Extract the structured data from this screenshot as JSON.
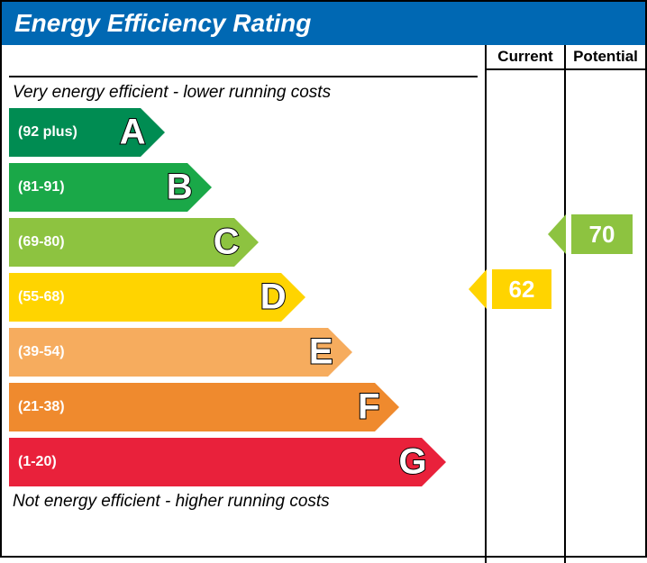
{
  "title": "Energy Efficiency Rating",
  "header_bg": "#0068b3",
  "header_color": "#ffffff",
  "columns": {
    "current": "Current",
    "potential": "Potential"
  },
  "caption_top": "Very energy efficient - lower running costs",
  "caption_bottom": "Not energy efficient - higher running costs",
  "band_height": 54,
  "band_gap": 7,
  "bands": [
    {
      "letter": "A",
      "range": "(92 plus)",
      "color": "#008c52",
      "width_pct": 28
    },
    {
      "letter": "B",
      "range": "(81-91)",
      "color": "#1aa848",
      "width_pct": 38
    },
    {
      "letter": "C",
      "range": "(69-80)",
      "color": "#8dc340",
      "width_pct": 48
    },
    {
      "letter": "D",
      "range": "(55-68)",
      "color": "#ffd400",
      "width_pct": 58
    },
    {
      "letter": "E",
      "range": "(39-54)",
      "color": "#f6ac5e",
      "width_pct": 68
    },
    {
      "letter": "F",
      "range": "(21-38)",
      "color": "#ef8a2e",
      "width_pct": 78
    },
    {
      "letter": "G",
      "range": "(1-20)",
      "color": "#e9213b",
      "width_pct": 88
    }
  ],
  "markers": {
    "current": {
      "value": 62,
      "band_index": 3,
      "color": "#ffd400"
    },
    "potential": {
      "value": 70,
      "band_index": 2,
      "color": "#8dc340"
    }
  }
}
